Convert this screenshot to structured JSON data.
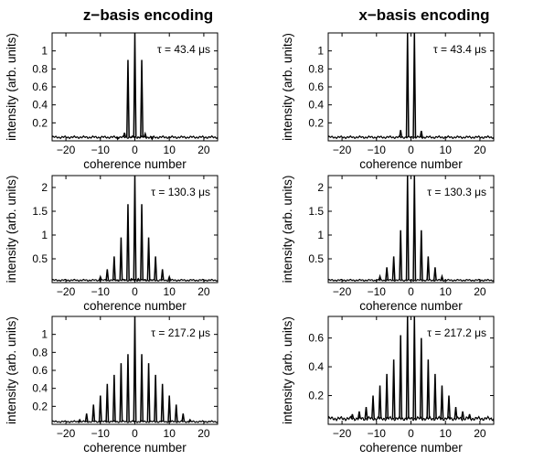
{
  "chart_data": [
    {
      "type": "line",
      "title": "z−basis encoding",
      "annotation": "τ = 43.4 μs",
      "xlabel": "coherence number",
      "ylabel": "intensity (arb. units)",
      "xlim": [
        -24,
        24
      ],
      "ylim": [
        0,
        1.2
      ],
      "xticks": [
        -20,
        -10,
        0,
        10,
        20
      ],
      "yticks": [
        0.2,
        0.4,
        0.6,
        0.8,
        1
      ],
      "ytick_labels": [
        "0.2",
        "0.4",
        "0.6",
        "0.8",
        "1"
      ],
      "peaks_x": [
        -5,
        -3,
        -2,
        -1,
        0,
        1,
        2,
        3,
        5
      ],
      "peaks_y": [
        0.02,
        0.09,
        0.9,
        0.04,
        1.2,
        0.04,
        0.9,
        0.08,
        0.02
      ],
      "baseline": 0.04
    },
    {
      "type": "line",
      "title": "x−basis encoding",
      "annotation": "τ = 43.4 μs",
      "xlabel": "coherence number",
      "ylabel": "intensity (arb. units)",
      "xlim": [
        -24,
        24
      ],
      "ylim": [
        0,
        1.2
      ],
      "xticks": [
        -20,
        -10,
        0,
        10,
        20
      ],
      "yticks": [
        0.2,
        0.4,
        0.6,
        0.8,
        1
      ],
      "ytick_labels": [
        "0.2",
        "0.4",
        "0.6",
        "0.8",
        "1"
      ],
      "peaks_x": [
        -3,
        -1,
        1,
        3
      ],
      "peaks_y": [
        0.12,
        1.2,
        1.2,
        0.11
      ],
      "baseline": 0.04
    },
    {
      "type": "line",
      "title": "",
      "annotation": "τ = 130.3 μs",
      "xlabel": "coherence number",
      "ylabel": "intensity (arb. units)",
      "xlim": [
        -24,
        24
      ],
      "ylim": [
        0,
        2.25
      ],
      "xticks": [
        -20,
        -10,
        0,
        10,
        20
      ],
      "yticks": [
        0.5,
        1,
        1.5,
        2
      ],
      "ytick_labels": [
        "0.5",
        "1",
        "1.5",
        "2"
      ],
      "peaks_x": [
        -10,
        -8,
        -6,
        -5,
        -4,
        -3,
        -2,
        -1,
        0,
        1,
        2,
        3,
        4,
        5,
        6,
        8,
        10
      ],
      "peaks_y": [
        0.12,
        0.28,
        0.55,
        0.05,
        0.95,
        0.06,
        1.65,
        0.08,
        2.25,
        0.08,
        1.65,
        0.06,
        0.95,
        0.05,
        0.55,
        0.28,
        0.12
      ],
      "baseline": 0.05
    },
    {
      "type": "line",
      "title": "",
      "annotation": "τ = 130.3 μs",
      "xlabel": "coherence number",
      "ylabel": "intensity (arb. units)",
      "xlim": [
        -24,
        24
      ],
      "ylim": [
        0,
        2.25
      ],
      "xticks": [
        -20,
        -10,
        0,
        10,
        20
      ],
      "yticks": [
        0.5,
        1,
        1.5,
        2
      ],
      "ytick_labels": [
        "0.5",
        "1",
        "1.5",
        "2"
      ],
      "peaks_x": [
        -9,
        -7,
        -5,
        -3,
        -1,
        1,
        3,
        5,
        7,
        9
      ],
      "peaks_y": [
        0.13,
        0.32,
        0.55,
        1.1,
        2.25,
        2.25,
        1.1,
        0.55,
        0.32,
        0.13
      ],
      "baseline": 0.05
    },
    {
      "type": "line",
      "title": "",
      "annotation": "τ = 217.2 μs",
      "xlabel": "coherence number",
      "ylabel": "intensity (arb. units)",
      "xlim": [
        -24,
        24
      ],
      "ylim": [
        0,
        1.2
      ],
      "xticks": [
        -20,
        -10,
        0,
        10,
        20
      ],
      "yticks": [
        0.2,
        0.4,
        0.6,
        0.8,
        1
      ],
      "ytick_labels": [
        "0.2",
        "0.4",
        "0.6",
        "0.8",
        "1"
      ],
      "peaks_x": [
        -16,
        -14,
        -12,
        -10,
        -8,
        -6,
        -4,
        -2,
        0,
        2,
        4,
        6,
        8,
        10,
        12,
        14,
        16
      ],
      "peaks_y": [
        0.05,
        0.12,
        0.22,
        0.32,
        0.45,
        0.55,
        0.68,
        0.78,
        1.2,
        0.78,
        0.68,
        0.55,
        0.45,
        0.32,
        0.22,
        0.12,
        0.05
      ],
      "baseline": 0.03
    },
    {
      "type": "line",
      "title": "",
      "annotation": "τ = 217.2 μs",
      "xlabel": "coherence number",
      "ylabel": "intensity (arb. units)",
      "xlim": [
        -24,
        24
      ],
      "ylim": [
        0,
        0.75
      ],
      "xticks": [
        -20,
        -10,
        0,
        10,
        20
      ],
      "yticks": [
        0.2,
        0.4,
        0.6
      ],
      "ytick_labels": [
        "0.2",
        "0.4",
        "0.6"
      ],
      "peaks_x": [
        -17,
        -15,
        -13,
        -11,
        -9,
        -7,
        -5,
        -3,
        -1,
        1,
        3,
        5,
        7,
        9,
        11,
        13,
        15,
        17
      ],
      "peaks_y": [
        0.07,
        0.09,
        0.12,
        0.2,
        0.27,
        0.35,
        0.45,
        0.62,
        0.75,
        0.75,
        0.6,
        0.45,
        0.35,
        0.27,
        0.2,
        0.12,
        0.09,
        0.07
      ],
      "baseline": 0.04
    }
  ]
}
